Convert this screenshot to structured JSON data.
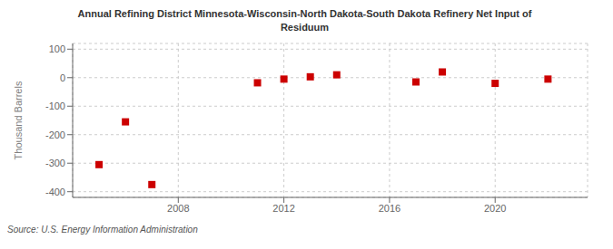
{
  "chart_data": {
    "type": "scatter",
    "title": "Annual Refining District Minnesota-Wisconsin-North Dakota-South Dakota Refinery Net Input of\nResiduum",
    "ylabel": "Thousand Barrels",
    "source": "Source: U.S. Energy Information Administration",
    "x": [
      2005,
      2006,
      2007,
      2011,
      2012,
      2013,
      2014,
      2017,
      2018,
      2020,
      2022
    ],
    "values": [
      -305,
      -155,
      -375,
      -18,
      -5,
      3,
      10,
      -15,
      20,
      -20,
      -5
    ],
    "color": "#cc0000",
    "marker": "square",
    "xlim": [
      2004.0,
      2023.5
    ],
    "ylim": [
      -420,
      120
    ],
    "xticks": [
      2008,
      2012,
      2016,
      2020
    ],
    "yticks": [
      -400,
      -300,
      -200,
      -100,
      0,
      100
    ],
    "grid": true
  }
}
